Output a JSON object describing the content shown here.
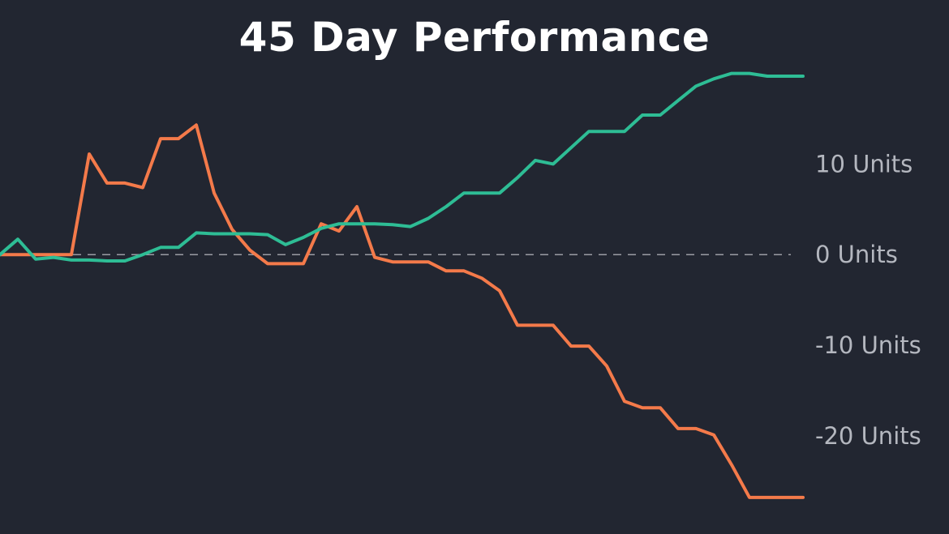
{
  "chart_data": {
    "type": "line",
    "title": "45 Day Performance",
    "xlabel": "",
    "ylabel": "",
    "x": [
      1,
      2,
      3,
      4,
      5,
      6,
      7,
      8,
      9,
      10,
      11,
      12,
      13,
      14,
      15,
      16,
      17,
      18,
      19,
      20,
      21,
      22,
      23,
      24,
      25,
      26,
      27,
      28,
      29,
      30,
      31,
      32,
      33,
      34,
      35,
      36,
      37,
      38,
      39,
      40,
      41,
      42,
      43,
      44,
      45,
      46
    ],
    "series": [
      {
        "color": "#2ebd95",
        "values": [
          0,
          1.7,
          -0.5,
          -0.3,
          -0.6,
          -0.6,
          -0.7,
          -0.7,
          0,
          0.8,
          0.8,
          2.4,
          2.3,
          2.3,
          2.3,
          2.2,
          1.1,
          1.9,
          2.9,
          3.4,
          3.4,
          3.4,
          3.3,
          3.1,
          4,
          5.3,
          6.8,
          6.8,
          6.8,
          8.5,
          10.4,
          10.0,
          11.8,
          13.6,
          13.6,
          13.6,
          15.4,
          15.4,
          17.0,
          18.6,
          19.4,
          20.0,
          20.0,
          19.7,
          19.7,
          19.7
        ]
      },
      {
        "color": "#f47a4a",
        "values": [
          0,
          0,
          0,
          0,
          0,
          11.1,
          7.9,
          7.9,
          7.4,
          12.8,
          12.8,
          14.3,
          6.8,
          2.8,
          0.5,
          -1.0,
          -1.0,
          -1.0,
          3.4,
          2.6,
          5.3,
          -0.3,
          -0.8,
          -0.8,
          -0.8,
          -1.8,
          -1.8,
          -2.6,
          -4.0,
          -7.8,
          -7.8,
          -7.8,
          -10.1,
          -10.1,
          -12.3,
          -16.2,
          -16.9,
          -16.9,
          -19.2,
          -19.2,
          -19.9,
          -23.2,
          -26.8,
          -26.8,
          -26.8,
          -26.8
        ]
      }
    ],
    "yticks": [
      {
        "value": 10,
        "label": "10 Units"
      },
      {
        "value": 0,
        "label": "0 Units"
      },
      {
        "value": -10,
        "label": "-10 Units"
      },
      {
        "value": -20,
        "label": "-20 Units"
      }
    ],
    "ylim": [
      -30.3,
      22.2
    ],
    "reference_line": 0,
    "grid": false,
    "legend": "none",
    "colors": {
      "background": "#222631",
      "title": "#ffffff",
      "tick_label": "#b4b7bf",
      "reference_line": "#9a9ca3"
    }
  }
}
